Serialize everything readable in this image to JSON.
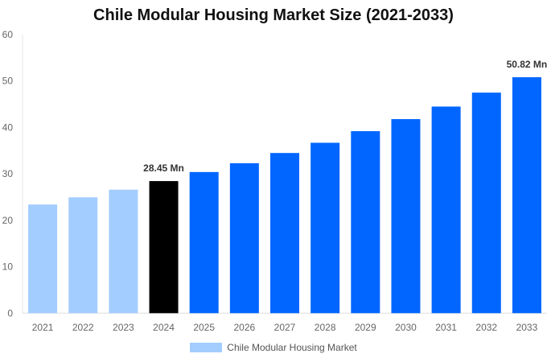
{
  "chart_data": {
    "type": "bar",
    "title": "Chile Modular Housing Market Size (2021-2033)",
    "xlabel": "",
    "ylabel": "",
    "ylim": [
      0,
      60
    ],
    "yticks": [
      0,
      10,
      20,
      30,
      40,
      50,
      60
    ],
    "grid": false,
    "legend_position": "bottom",
    "categories": [
      "2021",
      "2022",
      "2023",
      "2024",
      "2025",
      "2026",
      "2027",
      "2028",
      "2029",
      "2030",
      "2031",
      "2032",
      "2033"
    ],
    "series": [
      {
        "name": "Chile Modular Housing Market",
        "values": [
          23.4,
          24.95,
          26.6,
          28.45,
          30.4,
          32.3,
          34.5,
          36.7,
          39.2,
          41.8,
          44.5,
          47.5,
          50.82
        ]
      }
    ],
    "bar_colors": [
      "#a3cdff",
      "#a3cdff",
      "#a3cdff",
      "#000000",
      "#0066ff",
      "#0066ff",
      "#0066ff",
      "#0066ff",
      "#0066ff",
      "#0066ff",
      "#0066ff",
      "#0066ff",
      "#0066ff"
    ],
    "annotations": [
      {
        "category": "2024",
        "text": "28.45 Mn"
      },
      {
        "category": "2033",
        "text": "50.82 Mn"
      }
    ]
  }
}
